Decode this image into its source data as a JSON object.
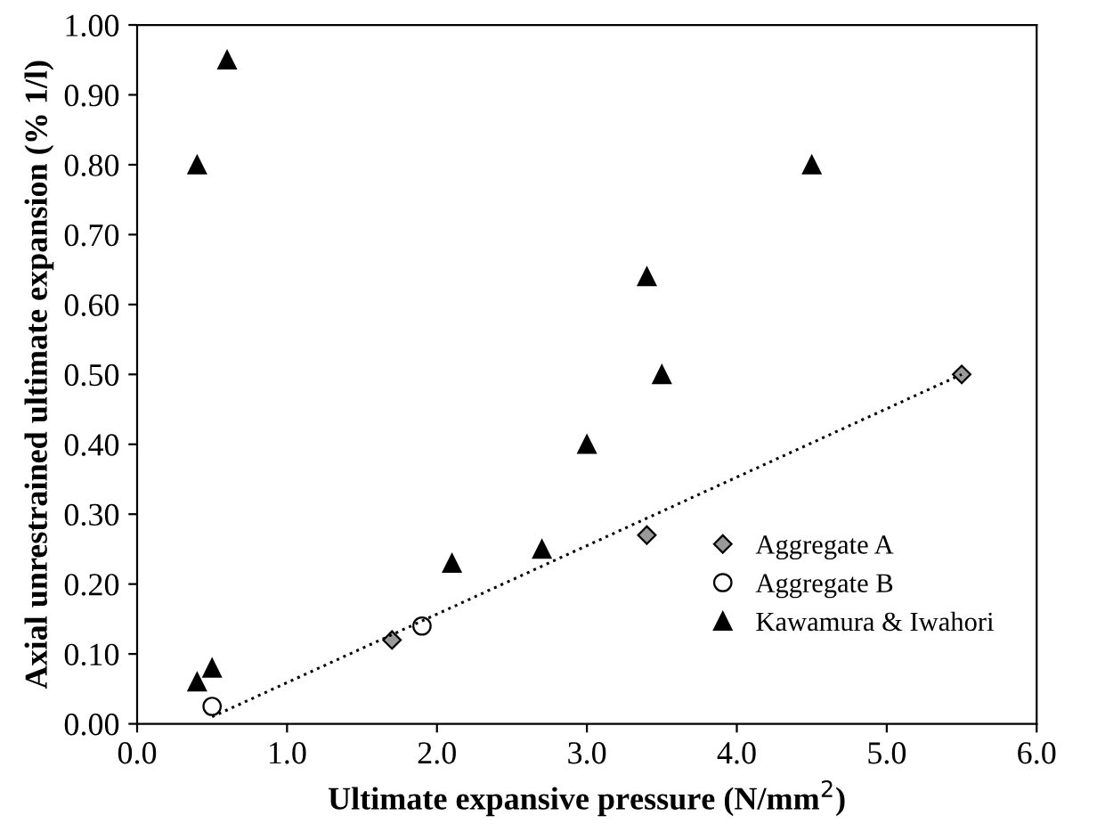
{
  "chart_data": {
    "type": "scatter",
    "xlabel": "Ultimate expansive pressure (N/mm$^{2}$)",
    "ylabel": "Axial unrestrained ultimate expansion (% 1/l)",
    "xlim": [
      0,
      6
    ],
    "ylim": [
      0,
      1
    ],
    "xticks": [
      {
        "value": 0,
        "label": "0.0"
      },
      {
        "value": 1,
        "label": "1.0"
      },
      {
        "value": 2,
        "label": "2.0"
      },
      {
        "value": 3,
        "label": "3.0"
      },
      {
        "value": 4,
        "label": "4.0"
      },
      {
        "value": 5,
        "label": "5.0"
      },
      {
        "value": 6,
        "label": "6.0"
      }
    ],
    "yticks": [
      {
        "value": 0,
        "label": "0.00"
      },
      {
        "value": 0.1,
        "label": "0.10"
      },
      {
        "value": 0.2,
        "label": "0.20"
      },
      {
        "value": 0.3,
        "label": "0.30"
      },
      {
        "value": 0.4,
        "label": "0.40"
      },
      {
        "value": 0.5,
        "label": "0.50"
      },
      {
        "value": 0.6,
        "label": "0.60"
      },
      {
        "value": 0.7,
        "label": "0.70"
      },
      {
        "value": 0.8,
        "label": "0.80"
      },
      {
        "value": 0.9,
        "label": "0.90"
      },
      {
        "value": 1,
        "label": "1.00"
      }
    ],
    "grid": false,
    "legend": "bottom right",
    "series": [
      {
        "name": "Aggregate A",
        "color": "#999999",
        "marker": "diamond",
        "x": [
          1.7,
          3.4,
          5.5
        ],
        "values": [
          0.12,
          0.27,
          0.5
        ]
      },
      {
        "name": "Aggregate B",
        "color": "#ffffff",
        "marker": "circle",
        "x": [
          0.5,
          1.9
        ],
        "values": [
          0.025,
          0.14
        ]
      },
      {
        "name": "Kawamura & Iwahori",
        "color": "#000000",
        "marker": "triangle",
        "x": [
          0.4,
          0.6,
          0.4,
          0.5,
          2.1,
          2.7,
          3.0,
          3.4,
          3.5,
          4.5
        ],
        "values": [
          0.8,
          0.95,
          0.06,
          0.08,
          0.23,
          0.25,
          0.4,
          0.64,
          0.5,
          0.8
        ]
      },
      {
        "type": "line",
        "color": "#000000",
        "line_style": "dotted",
        "marker": "none",
        "x": [
          0.5,
          5.5
        ],
        "values": [
          0.01,
          0.5
        ]
      }
    ]
  }
}
